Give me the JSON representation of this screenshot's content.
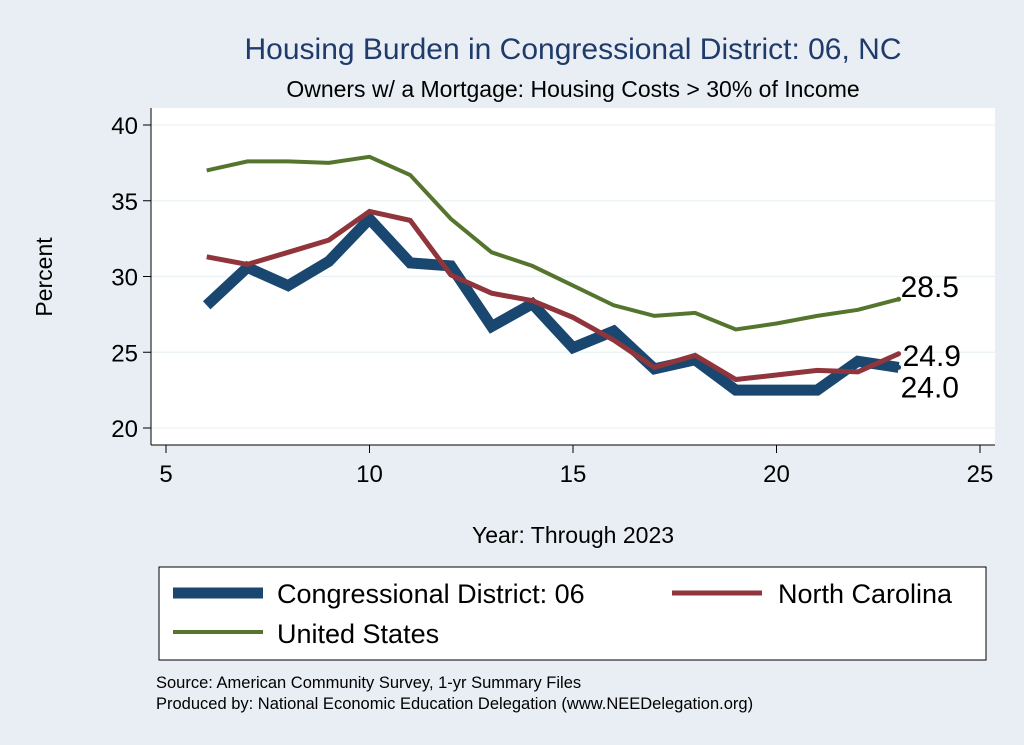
{
  "chart_data": {
    "type": "line",
    "title": "Housing Burden in Congressional District:  06, NC",
    "subtitle": "Owners w/ a Mortgage: Housing Costs > 30% of Income",
    "xlabel": "Year: Through 2023",
    "ylabel": "Percent",
    "xlim": [
      5,
      25
    ],
    "ylim": [
      20,
      40
    ],
    "xticks": [
      5,
      10,
      15,
      20,
      25
    ],
    "yticks": [
      20,
      25,
      30,
      35,
      40
    ],
    "grid": true,
    "legend_position": "bottom",
    "series": [
      {
        "name": "Congressional District:  06",
        "color": "#1a476f",
        "x": [
          6,
          7,
          8,
          9,
          10,
          11,
          12,
          13,
          14,
          15,
          16,
          17,
          18,
          19,
          20,
          21,
          22,
          23
        ],
        "y": [
          28.1,
          30.6,
          29.4,
          31.0,
          33.8,
          30.9,
          30.7,
          26.7,
          28.2,
          25.3,
          26.4,
          23.9,
          24.5,
          22.5,
          22.5,
          22.5,
          24.4,
          24.0
        ],
        "end_label": "24.0"
      },
      {
        "name": "North Carolina",
        "color": "#90353b",
        "x": [
          6,
          7,
          8,
          9,
          10,
          11,
          12,
          13,
          14,
          15,
          16,
          17,
          18,
          19,
          20,
          21,
          22,
          23
        ],
        "y": [
          31.3,
          30.8,
          31.6,
          32.4,
          34.3,
          33.7,
          30.1,
          28.9,
          28.4,
          27.3,
          25.8,
          24.0,
          24.8,
          23.2,
          23.5,
          23.8,
          23.7,
          24.9
        ],
        "end_label": "24.9"
      },
      {
        "name": "United States",
        "color": "#55752f",
        "x": [
          6,
          7,
          8,
          9,
          10,
          11,
          12,
          13,
          14,
          15,
          16,
          17,
          18,
          19,
          20,
          21,
          22,
          23
        ],
        "y": [
          37.0,
          37.6,
          37.6,
          37.5,
          37.9,
          36.7,
          33.8,
          31.6,
          30.7,
          29.4,
          28.1,
          27.4,
          27.6,
          26.5,
          26.9,
          27.4,
          27.8,
          28.5
        ],
        "end_label": "28.5"
      }
    ],
    "source_lines": [
      "Source: American Community Survey, 1-yr Summary Files",
      "Produced by: National Economic Education Delegation (www.NEEDelegation.org)"
    ]
  }
}
